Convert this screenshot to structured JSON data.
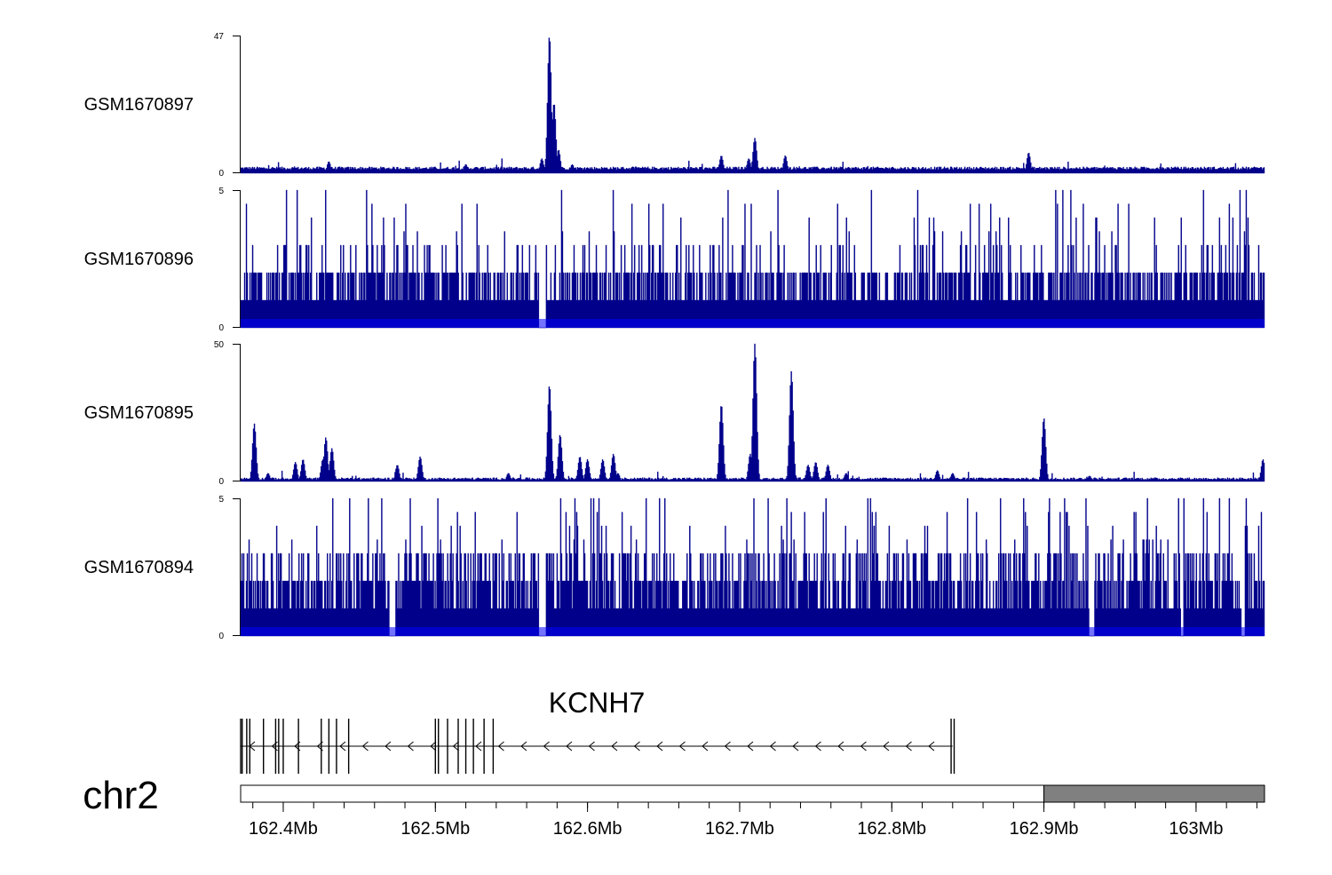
{
  "figure_title": "",
  "chart_data": {
    "type": "genome_browser_tracks",
    "chromosome": "chr2",
    "genome_range_mb": [
      162.372,
      163.045
    ],
    "x_ticks": [
      {
        "value": 162.4,
        "label": "162.4Mb"
      },
      {
        "value": 162.5,
        "label": "162.5Mb"
      },
      {
        "value": 162.6,
        "label": "162.6Mb"
      },
      {
        "value": 162.7,
        "label": "162.7Mb"
      },
      {
        "value": 162.8,
        "label": "162.8Mb"
      },
      {
        "value": 162.9,
        "label": "162.9Mb"
      },
      {
        "value": 163.0,
        "label": "163Mb"
      }
    ],
    "tracks": [
      {
        "name": "GSM1670897",
        "ymin": 0,
        "ymax": 47,
        "ymin_label": "0",
        "ymax_label": "47",
        "profile": "sparse",
        "baseline": 1.2,
        "noise": 1.0,
        "peaks": [
          [
            162.376,
            2
          ],
          [
            162.43,
            4
          ],
          [
            162.52,
            3
          ],
          [
            162.57,
            5
          ],
          [
            162.575,
            47
          ],
          [
            162.578,
            24
          ],
          [
            162.581,
            8
          ],
          [
            162.59,
            3
          ],
          [
            162.688,
            6
          ],
          [
            162.706,
            5
          ],
          [
            162.71,
            12
          ],
          [
            162.73,
            6
          ],
          [
            162.75,
            2
          ],
          [
            162.8,
            2
          ],
          [
            162.89,
            7
          ],
          [
            162.95,
            2
          ],
          [
            163.04,
            2
          ]
        ]
      },
      {
        "name": "GSM1670896",
        "ymin": 0,
        "ymax": 5,
        "ymin_label": "0",
        "ymax_label": "5",
        "profile": "dense",
        "levels": [
          1,
          2,
          3
        ],
        "level_probs": [
          0.4,
          0.5,
          0.1
        ],
        "spike_prob": 0.06,
        "spike_levels": [
          3.5,
          4,
          4.5,
          5
        ],
        "dips": [
          [
            162.568,
            162.573
          ]
        ]
      },
      {
        "name": "GSM1670895",
        "ymin": 0,
        "ymax": 50,
        "ymin_label": "0",
        "ymax_label": "50",
        "profile": "sparse",
        "baseline": 0.6,
        "noise": 0.8,
        "peaks": [
          [
            162.381,
            21
          ],
          [
            162.39,
            3
          ],
          [
            162.408,
            7
          ],
          [
            162.413,
            8
          ],
          [
            162.426,
            8
          ],
          [
            162.428,
            16
          ],
          [
            162.432,
            12
          ],
          [
            162.475,
            6
          ],
          [
            162.49,
            9
          ],
          [
            162.548,
            3
          ],
          [
            162.575,
            35
          ],
          [
            162.582,
            17
          ],
          [
            162.595,
            9
          ],
          [
            162.6,
            8
          ],
          [
            162.61,
            8
          ],
          [
            162.617,
            10
          ],
          [
            162.62,
            3
          ],
          [
            162.688,
            28
          ],
          [
            162.71,
            50
          ],
          [
            162.707,
            10
          ],
          [
            162.734,
            40
          ],
          [
            162.745,
            6
          ],
          [
            162.75,
            7
          ],
          [
            162.758,
            6
          ],
          [
            162.77,
            3
          ],
          [
            162.83,
            4
          ],
          [
            162.84,
            3
          ],
          [
            162.9,
            23
          ],
          [
            162.93,
            2
          ],
          [
            163.044,
            8
          ]
        ]
      },
      {
        "name": "GSM1670894",
        "ymin": 0,
        "ymax": 5,
        "ymin_label": "0",
        "ymax_label": "5",
        "profile": "dense",
        "levels": [
          1,
          2,
          3
        ],
        "level_probs": [
          0.3,
          0.4,
          0.3
        ],
        "spike_prob": 0.1,
        "spike_levels": [
          3.5,
          4,
          4.5,
          5
        ],
        "dips": [
          [
            162.47,
            162.474
          ],
          [
            162.568,
            162.573
          ],
          [
            162.93,
            162.933
          ],
          [
            162.99,
            162.992
          ],
          [
            163.03,
            163.032
          ]
        ]
      }
    ],
    "gene_track": {
      "name": "KCNH7",
      "strand": "-",
      "start_mb": 162.372,
      "end_mb": 162.84,
      "exons_mb": [
        162.372,
        162.373,
        162.376,
        162.378,
        162.387,
        162.395,
        162.397,
        162.4,
        162.41,
        162.425,
        162.43,
        162.435,
        162.443,
        162.5,
        162.502,
        162.508,
        162.515,
        162.52,
        162.525,
        162.532,
        162.538,
        162.839,
        162.841
      ]
    },
    "ideogram": {
      "chromosome_label": "chr2",
      "white_band_mb": [
        162.372,
        162.9
      ],
      "gray_band_mb": [
        162.9,
        163.045
      ],
      "gray_band_color": "#808080"
    },
    "colors": {
      "signal_fill": "#00008b",
      "signal_highlight": "#0000ff",
      "axis": "#000000"
    }
  }
}
